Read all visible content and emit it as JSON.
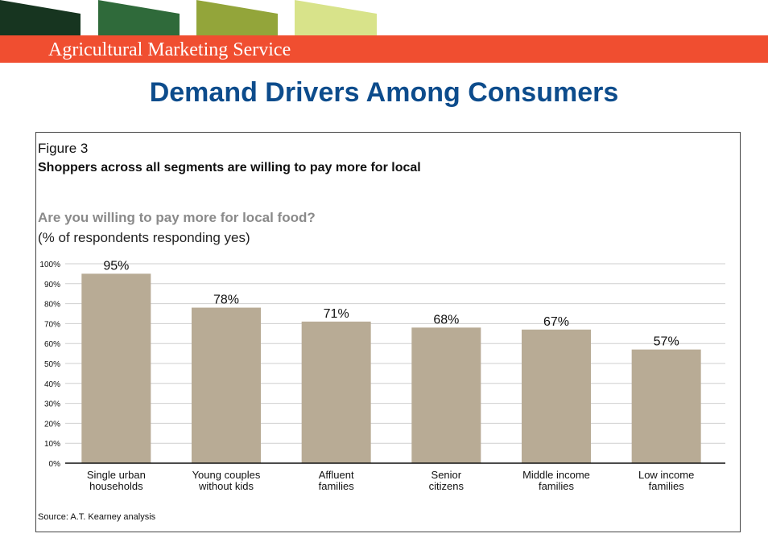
{
  "header": {
    "agency_name": "Agricultural Marketing Service",
    "tab_colors": [
      "#173520",
      "#2f6a3a",
      "#93a53a",
      "#d8e38a"
    ],
    "banner_color": "#f04e30"
  },
  "slide": {
    "title": "Demand Drivers Among Consumers"
  },
  "figure": {
    "label": "Figure 3",
    "headline": "Shoppers across all segments are willing to pay more for local",
    "question": "Are you willing to pay more for local food?",
    "unit_note": "(% of respondents responding yes)",
    "source": "Source: A.T. Kearney analysis"
  },
  "chart_data": {
    "type": "bar",
    "categories": [
      [
        "Single urban",
        "households"
      ],
      [
        "Young couples",
        "without kids"
      ],
      [
        "Affluent",
        "families"
      ],
      [
        "Senior",
        "citizens"
      ],
      [
        "Middle income",
        "families"
      ],
      [
        "Low income",
        "families"
      ]
    ],
    "values": [
      95,
      78,
      71,
      68,
      67,
      57
    ],
    "data_labels": [
      "95%",
      "78%",
      "71%",
      "68%",
      "67%",
      "57%"
    ],
    "y_ticks": [
      0,
      10,
      20,
      30,
      40,
      50,
      60,
      70,
      80,
      90,
      100
    ],
    "y_tick_labels": [
      "0%",
      "10%",
      "20%",
      "30%",
      "40%",
      "50%",
      "60%",
      "70%",
      "80%",
      "90%",
      "100%"
    ],
    "ylim": [
      0,
      100
    ],
    "grid": true,
    "bar_color": "#b8ab95",
    "title": "Are you willing to pay more for local food?",
    "ylabel": "(% of respondents responding yes)",
    "xlabel": ""
  }
}
